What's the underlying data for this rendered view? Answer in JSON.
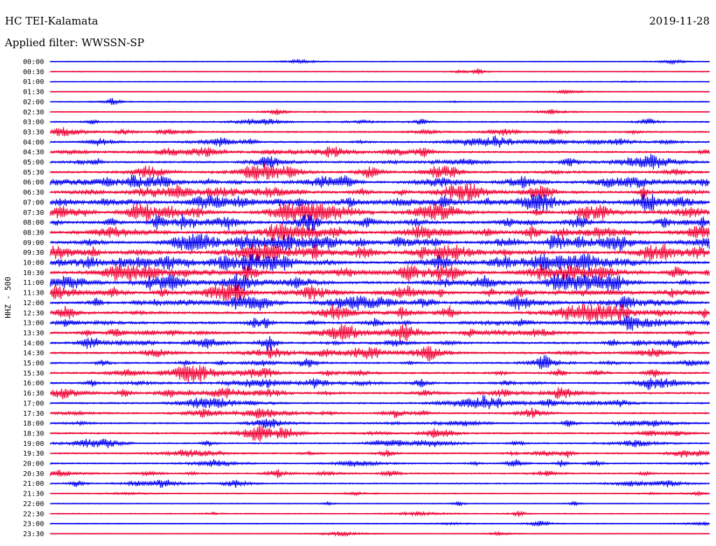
{
  "header": {
    "station": "HC TEI-Kalamata",
    "date": "2019-11-28",
    "filter": "Applied filter: WWSSN-SP"
  },
  "chart_data": {
    "type": "line",
    "title": "HC TEI-Kalamata",
    "subtitle": "Applied filter: WWSSN-SP",
    "date": "2019-11-28",
    "ylabel": "HHZ - 500",
    "trace_minutes": 30,
    "colors": [
      "#0000ee",
      "#ee0033"
    ],
    "rows": [
      {
        "label": "00:00",
        "activity": 0.05
      },
      {
        "label": "00:30",
        "activity": 0.06
      },
      {
        "label": "01:00",
        "activity": 0.02
      },
      {
        "label": "01:30",
        "activity": 0.02
      },
      {
        "label": "02:00",
        "activity": 0.1
      },
      {
        "label": "02:30",
        "activity": 0.1
      },
      {
        "label": "03:00",
        "activity": 0.22
      },
      {
        "label": "03:30",
        "activity": 0.35
      },
      {
        "label": "04:00",
        "activity": 0.45
      },
      {
        "label": "04:30",
        "activity": 0.5
      },
      {
        "label": "05:00",
        "activity": 0.55
      },
      {
        "label": "05:30",
        "activity": 0.6
      },
      {
        "label": "06:00",
        "activity": 0.75
      },
      {
        "label": "06:30",
        "activity": 0.85
      },
      {
        "label": "07:00",
        "activity": 0.85
      },
      {
        "label": "07:30",
        "activity": 0.9
      },
      {
        "label": "08:00",
        "activity": 0.9
      },
      {
        "label": "08:30",
        "activity": 0.85
      },
      {
        "label": "09:00",
        "activity": 0.95
      },
      {
        "label": "09:30",
        "activity": 0.9
      },
      {
        "label": "10:00",
        "activity": 0.9
      },
      {
        "label": "10:30",
        "activity": 0.9
      },
      {
        "label": "11:00",
        "activity": 0.85
      },
      {
        "label": "11:30",
        "activity": 0.85
      },
      {
        "label": "12:00",
        "activity": 0.8
      },
      {
        "label": "12:30",
        "activity": 0.75
      },
      {
        "label": "13:00",
        "activity": 0.7
      },
      {
        "label": "13:30",
        "activity": 0.65
      },
      {
        "label": "14:00",
        "activity": 0.6
      },
      {
        "label": "14:30",
        "activity": 0.55
      },
      {
        "label": "15:00",
        "activity": 0.5
      },
      {
        "label": "15:30",
        "activity": 0.5
      },
      {
        "label": "16:00",
        "activity": 0.5
      },
      {
        "label": "16:30",
        "activity": 0.5
      },
      {
        "label": "17:00",
        "activity": 0.45
      },
      {
        "label": "17:30",
        "activity": 0.4
      },
      {
        "label": "18:00",
        "activity": 0.4
      },
      {
        "label": "18:30",
        "activity": 0.4
      },
      {
        "label": "19:00",
        "activity": 0.35
      },
      {
        "label": "19:30",
        "activity": 0.35
      },
      {
        "label": "20:00",
        "activity": 0.3
      },
      {
        "label": "20:30",
        "activity": 0.3
      },
      {
        "label": "21:00",
        "activity": 0.25
      },
      {
        "label": "21:30",
        "activity": 0.15
      },
      {
        "label": "22:00",
        "activity": 0.1
      },
      {
        "label": "22:30",
        "activity": 0.08
      },
      {
        "label": "23:00",
        "activity": 0.08
      },
      {
        "label": "23:30",
        "activity": 0.03
      }
    ]
  }
}
